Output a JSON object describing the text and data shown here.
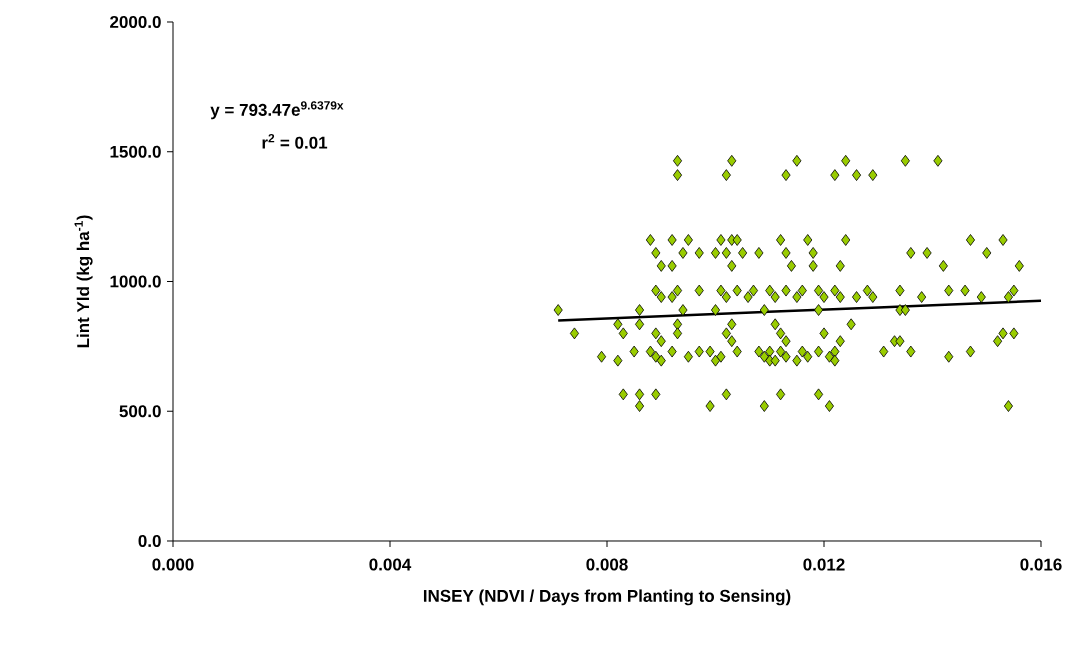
{
  "chart_data": {
    "type": "scatter",
    "xlabel": "INSEY (NDVI / Days from Planting to Sensing)",
    "ylabel": "Lint Yld (kg ha$^{-1}$)",
    "xlim": [
      0,
      0.016
    ],
    "ylim": [
      0,
      2000
    ],
    "xticks": [
      {
        "value": 0,
        "label": "0.000"
      },
      {
        "value": 0.004,
        "label": "0.004"
      },
      {
        "value": 0.008,
        "label": "0.008"
      },
      {
        "value": 0.012,
        "label": "0.012"
      },
      {
        "value": 0.016,
        "label": "0.016"
      }
    ],
    "yticks": [
      {
        "value": 0,
        "label": "0.0"
      },
      {
        "value": 500,
        "label": "500.0"
      },
      {
        "value": 1000,
        "label": "1000.0"
      },
      {
        "value": 1500,
        "label": "1500.0"
      },
      {
        "value": 2000,
        "label": "2000.0"
      }
    ],
    "grid": false,
    "marker": "diamond",
    "annotations": [
      "y = 793.47e$^{9.6379x}$",
      "r$^{2}$ = 0.01"
    ],
    "series": [
      {
        "color": "#99cc00",
        "x": [
          0.0093,
          0.0103,
          0.0115,
          0.0124,
          0.0135,
          0.0141,
          0.0093,
          0.0102,
          0.0113,
          0.0122,
          0.0126,
          0.0129,
          0.0088,
          0.0092,
          0.0095,
          0.0101,
          0.0103,
          0.0104,
          0.0112,
          0.0117,
          0.0124,
          0.0147,
          0.0153,
          0.0089,
          0.0094,
          0.0097,
          0.01,
          0.0102,
          0.0105,
          0.0108,
          0.0113,
          0.0118,
          0.0136,
          0.0139,
          0.015,
          0.009,
          0.0092,
          0.0103,
          0.0114,
          0.0118,
          0.0123,
          0.0142,
          0.0156,
          0.0089,
          0.0093,
          0.0097,
          0.0101,
          0.0104,
          0.0107,
          0.011,
          0.0113,
          0.0116,
          0.0119,
          0.0122,
          0.0128,
          0.0134,
          0.0143,
          0.0146,
          0.0155,
          0.009,
          0.0092,
          0.0102,
          0.0106,
          0.0111,
          0.0115,
          0.012,
          0.0123,
          0.0126,
          0.0129,
          0.0138,
          0.0149,
          0.0154,
          0.0071,
          0.0086,
          0.0094,
          0.01,
          0.0109,
          0.0119,
          0.0134,
          0.0135,
          0.0082,
          0.0086,
          0.0093,
          0.0103,
          0.0111,
          0.0125,
          0.0074,
          0.0083,
          0.0089,
          0.0093,
          0.0102,
          0.0112,
          0.012,
          0.0153,
          0.0155,
          0.009,
          0.0103,
          0.0113,
          0.0123,
          0.0133,
          0.0134,
          0.0152,
          0.0085,
          0.0088,
          0.0092,
          0.0097,
          0.0099,
          0.0104,
          0.0108,
          0.011,
          0.0112,
          0.0116,
          0.0119,
          0.0122,
          0.0131,
          0.0136,
          0.0147,
          0.0079,
          0.0089,
          0.0095,
          0.0101,
          0.0109,
          0.0113,
          0.0117,
          0.0121,
          0.0143,
          0.0082,
          0.009,
          0.01,
          0.011,
          0.0111,
          0.0115,
          0.0122,
          0.0083,
          0.0086,
          0.0089,
          0.0102,
          0.0112,
          0.0119,
          0.0086,
          0.0099,
          0.0109,
          0.0121,
          0.0154
        ],
        "values": [
          1465,
          1465,
          1465,
          1465,
          1465,
          1465,
          1410,
          1410,
          1410,
          1410,
          1410,
          1410,
          1160,
          1160,
          1160,
          1160,
          1160,
          1160,
          1160,
          1160,
          1160,
          1160,
          1160,
          1110,
          1110,
          1110,
          1110,
          1110,
          1110,
          1110,
          1110,
          1110,
          1110,
          1110,
          1110,
          1060,
          1060,
          1060,
          1060,
          1060,
          1060,
          1060,
          1060,
          965,
          965,
          965,
          965,
          965,
          965,
          965,
          965,
          965,
          965,
          965,
          965,
          965,
          965,
          965,
          965,
          940,
          940,
          940,
          940,
          940,
          940,
          940,
          940,
          940,
          940,
          940,
          940,
          940,
          890,
          890,
          890,
          890,
          890,
          890,
          890,
          890,
          835,
          835,
          835,
          835,
          835,
          835,
          800,
          800,
          800,
          800,
          800,
          800,
          800,
          800,
          800,
          770,
          770,
          770,
          770,
          770,
          770,
          770,
          730,
          730,
          730,
          730,
          730,
          730,
          730,
          730,
          730,
          730,
          730,
          730,
          730,
          730,
          730,
          710,
          710,
          710,
          710,
          710,
          710,
          710,
          710,
          710,
          695,
          695,
          695,
          695,
          695,
          695,
          695,
          565,
          565,
          565,
          565,
          565,
          565,
          520,
          520,
          520,
          520,
          520
        ]
      },
      {
        "type": "line",
        "color": "#000000",
        "marker": "none",
        "line_style": "solid",
        "x": [
          0.0071,
          0.01,
          0.013,
          0.016
        ],
        "values": [
          850,
          875,
          900,
          926
        ]
      }
    ]
  }
}
